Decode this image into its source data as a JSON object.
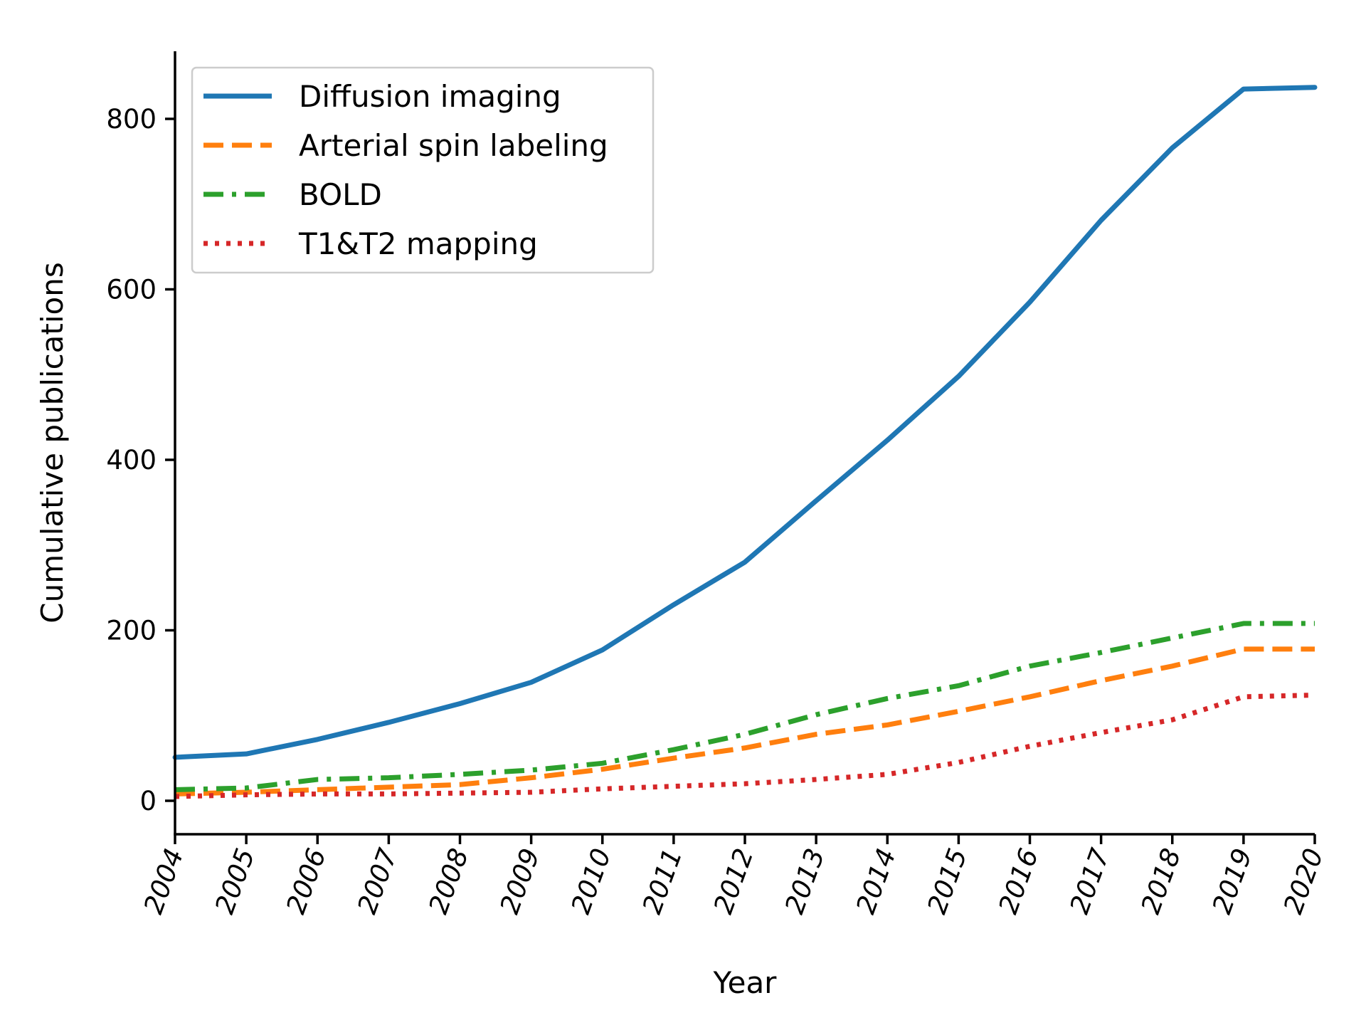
{
  "chart_data": {
    "type": "line",
    "title": "",
    "xlabel": "Year",
    "ylabel": "Cumulative publications",
    "x": [
      "2004",
      "2005",
      "2006",
      "2007",
      "2008",
      "2009",
      "2010",
      "2011",
      "2012",
      "2013",
      "2014",
      "2015",
      "2016",
      "2017",
      "2018",
      "2019",
      "2020"
    ],
    "xlim": [
      2004,
      2020
    ],
    "ylim": [
      -40,
      880
    ],
    "yticks": [
      0,
      200,
      400,
      600,
      800
    ],
    "grid": false,
    "legend_position": "top-left",
    "series": [
      {
        "name": "Diffusion imaging",
        "color": "#1f77b4",
        "style": "solid",
        "values": [
          51,
          55,
          72,
          92,
          114,
          139,
          177,
          230,
          280,
          352,
          423,
          498,
          585,
          681,
          766,
          835,
          837
        ]
      },
      {
        "name": "Arterial spin labeling",
        "color": "#ff7f0e",
        "style": "dashed",
        "values": [
          8,
          10,
          13,
          16,
          19,
          27,
          37,
          50,
          62,
          78,
          89,
          105,
          122,
          141,
          158,
          178,
          178
        ]
      },
      {
        "name": "BOLD",
        "color": "#2ca02c",
        "style": "dashdot",
        "values": [
          13,
          15,
          25,
          27,
          31,
          36,
          44,
          60,
          78,
          101,
          120,
          135,
          158,
          174,
          191,
          208,
          208
        ]
      },
      {
        "name": "T1&T2 mapping",
        "color": "#d62728",
        "style": "dotted",
        "values": [
          5,
          7,
          8,
          8,
          9,
          10,
          14,
          17,
          20,
          25,
          31,
          45,
          64,
          80,
          95,
          122,
          124
        ]
      }
    ]
  }
}
